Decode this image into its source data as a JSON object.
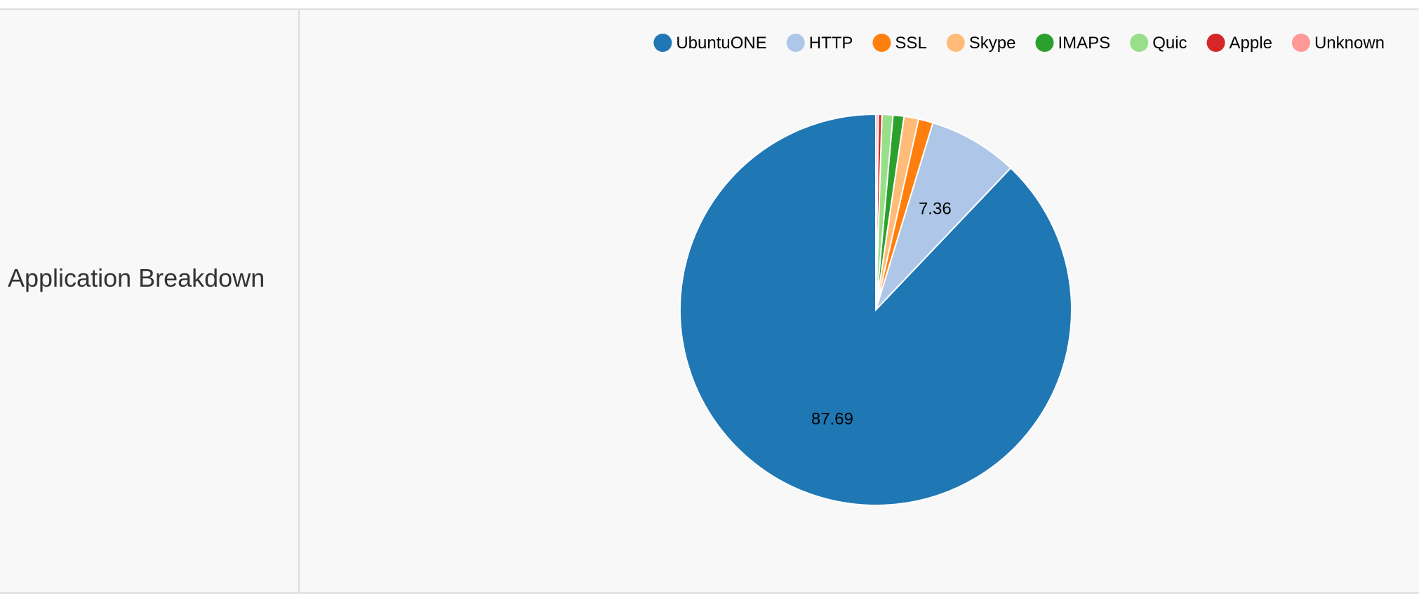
{
  "row": {
    "title": "Application Breakdown"
  },
  "chart_data": {
    "type": "pie",
    "title": "",
    "legend_position": "top-right",
    "slices": [
      {
        "name": "UbuntuONE",
        "value": 87.69,
        "color": "#1f77b4",
        "label": "87.69"
      },
      {
        "name": "HTTP",
        "value": 7.36,
        "color": "#aec7e8",
        "label": "7.36"
      },
      {
        "name": "SSL",
        "value": 1.2,
        "color": "#ff7f0e",
        "label": ""
      },
      {
        "name": "Skype",
        "value": 1.2,
        "color": "#ffbb78",
        "label": ""
      },
      {
        "name": "IMAPS",
        "value": 0.9,
        "color": "#2ca02c",
        "label": ""
      },
      {
        "name": "Quic",
        "value": 0.9,
        "color": "#98df8a",
        "label": ""
      },
      {
        "name": "Apple",
        "value": 0.3,
        "color": "#d62728",
        "label": ""
      },
      {
        "name": "Unknown",
        "value": 0.2,
        "color": "#ff9896",
        "label": ""
      }
    ]
  }
}
